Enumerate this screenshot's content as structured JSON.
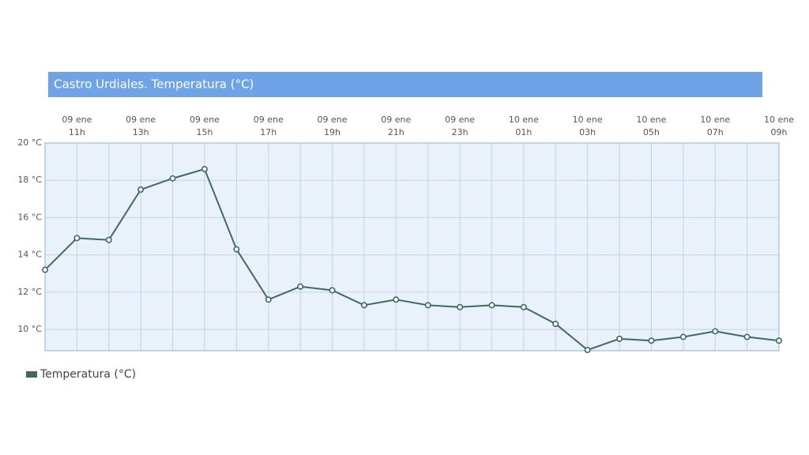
{
  "chart_data": {
    "type": "line",
    "title": "Castro Urdiales. Temperatura (°C)",
    "categories": [
      null,
      [
        "09 ene",
        "11h"
      ],
      null,
      [
        "09 ene",
        "13h"
      ],
      null,
      [
        "09 ene",
        "15h"
      ],
      null,
      [
        "09 ene",
        "17h"
      ],
      null,
      [
        "09 ene",
        "19h"
      ],
      null,
      [
        "09 ene",
        "21h"
      ],
      null,
      [
        "09 ene",
        "23h"
      ],
      null,
      [
        "10 ene",
        "01h"
      ],
      null,
      [
        "10 ene",
        "03h"
      ],
      null,
      [
        "10 ene",
        "05h"
      ],
      null,
      [
        "10 ene",
        "07h"
      ],
      null,
      [
        "10 ene",
        "09h"
      ]
    ],
    "series": [
      {
        "name": "Temperatura (°C)",
        "color": "#3f6b5d",
        "values": [
          13.2,
          14.9,
          14.8,
          17.5,
          18.1,
          18.6,
          14.3,
          11.6,
          12.3,
          12.1,
          11.3,
          11.6,
          11.3,
          11.2,
          11.3,
          11.2,
          10.3,
          8.9,
          9.5,
          9.4,
          9.6,
          9.9,
          9.6,
          9.4
        ]
      }
    ],
    "ylim": [
      8.86,
      20
    ],
    "yticks": [
      {
        "value": 10,
        "label": "10 °C"
      },
      {
        "value": 12,
        "label": "12 °C"
      },
      {
        "value": 14,
        "label": "14 °C"
      },
      {
        "value": 16,
        "label": "16 °C"
      },
      {
        "value": 18,
        "label": "18 °C"
      },
      {
        "value": 20,
        "label": "20 °C"
      }
    ],
    "grid": true
  }
}
